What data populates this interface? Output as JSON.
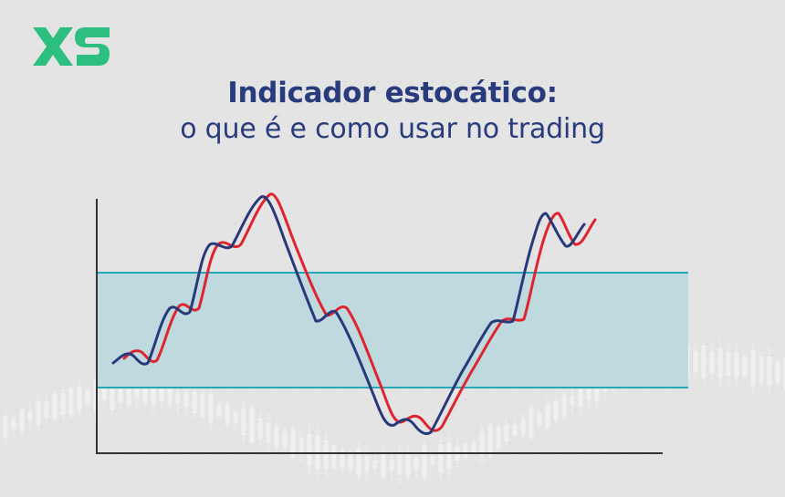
{
  "brand": {
    "logo_text": "XS",
    "logo_color": "#2dbf7f"
  },
  "header": {
    "title_bold": "Indicador estocático:",
    "title_regular": "o que é e como usar no trading"
  },
  "colors": {
    "title": "#283b7c",
    "band_fill": "#bcd9de",
    "band_lines": "#22a8b8",
    "line_k": "#28397a",
    "line_d": "#e0242f",
    "axes": "#333333"
  }
}
